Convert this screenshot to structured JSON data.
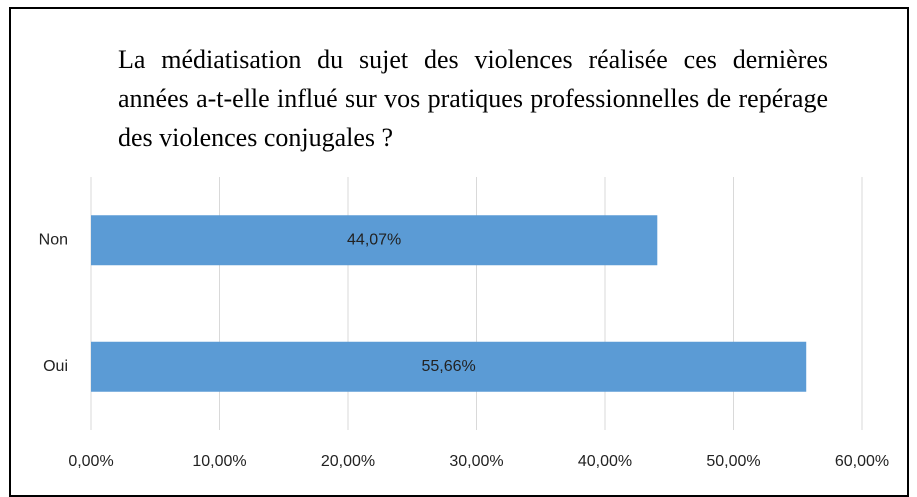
{
  "chart_data": {
    "type": "barh",
    "title": "La médiatisation du sujet des violences réalisée ces dernières années a-t-elle influé sur vos pratiques professionnelles de repérage des violences conjugales ?",
    "categories": [
      "Non",
      "Oui"
    ],
    "values": [
      44.07,
      55.66
    ],
    "value_labels": [
      "44,07%",
      "55,66%"
    ],
    "color": "#5b9bd5",
    "xlim": [
      0,
      60
    ],
    "xticks": [
      {
        "value": 0,
        "label": "0,00%"
      },
      {
        "value": 10,
        "label": "10,00%"
      },
      {
        "value": 20,
        "label": "20,00%"
      },
      {
        "value": 30,
        "label": "30,00%"
      },
      {
        "value": 40,
        "label": "40,00%"
      },
      {
        "value": 50,
        "label": "50,00%"
      },
      {
        "value": 60,
        "label": "60,00%"
      }
    ],
    "grid": true
  }
}
